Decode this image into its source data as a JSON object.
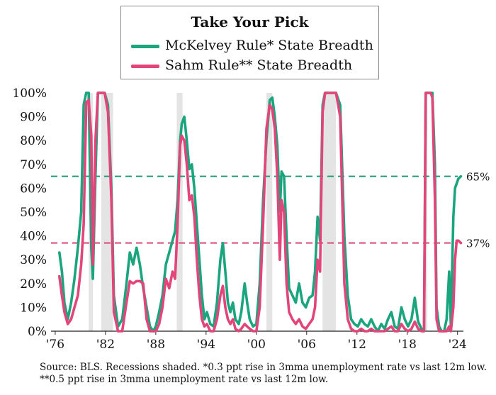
{
  "chart_data": {
    "type": "line",
    "title": "Take Your Pick",
    "xlabel": "",
    "ylabel": "",
    "ylim": [
      0,
      100
    ],
    "xlim": [
      1975.5,
      2024.7
    ],
    "y_tick_labels": [
      "0%",
      "10%",
      "20%",
      "30%",
      "40%",
      "50%",
      "60%",
      "70%",
      "80%",
      "90%",
      "100%"
    ],
    "x_tick_labels": [
      {
        "year": 1976,
        "label": "'76"
      },
      {
        "year": 1982,
        "label": "'82"
      },
      {
        "year": 1988,
        "label": "'88"
      },
      {
        "year": 1994,
        "label": "'94"
      },
      {
        "year": 2000,
        "label": "'00"
      },
      {
        "year": 2006,
        "label": "'06"
      },
      {
        "year": 2012,
        "label": "'12"
      },
      {
        "year": 2018,
        "label": "'18"
      },
      {
        "year": 2024,
        "label": "'24"
      }
    ],
    "recessions": [
      [
        1980.0,
        1980.5
      ],
      [
        1981.5,
        1982.9
      ],
      [
        1990.5,
        1991.2
      ],
      [
        2001.2,
        2001.9
      ],
      [
        2007.9,
        2009.5
      ],
      [
        2020.1,
        2020.4
      ]
    ],
    "reference_lines": [
      {
        "value": 65,
        "label": "65%",
        "color": "#1a9a7a"
      },
      {
        "value": 37,
        "label": "37%",
        "color": "#d94a7a"
      }
    ],
    "series": [
      {
        "name": "McKelvey Rule* State Breadth",
        "color": "#1aa57e",
        "points": [
          [
            1976.5,
            33
          ],
          [
            1976.8,
            25
          ],
          [
            1977.1,
            12
          ],
          [
            1977.5,
            5
          ],
          [
            1977.9,
            12
          ],
          [
            1978.3,
            22
          ],
          [
            1978.7,
            35
          ],
          [
            1979.1,
            50
          ],
          [
            1979.4,
            95
          ],
          [
            1979.7,
            100
          ],
          [
            1980.0,
            100
          ],
          [
            1980.3,
            35
          ],
          [
            1980.5,
            22
          ],
          [
            1980.8,
            65
          ],
          [
            1981.1,
            100
          ],
          [
            1981.5,
            100
          ],
          [
            1981.9,
            100
          ],
          [
            1982.3,
            95
          ],
          [
            1982.7,
            60
          ],
          [
            1983.0,
            15
          ],
          [
            1983.5,
            2
          ],
          [
            1984.0,
            5
          ],
          [
            1984.5,
            20
          ],
          [
            1984.9,
            33
          ],
          [
            1985.3,
            28
          ],
          [
            1985.7,
            35
          ],
          [
            1986.1,
            28
          ],
          [
            1986.5,
            18
          ],
          [
            1986.9,
            10
          ],
          [
            1987.3,
            2
          ],
          [
            1987.7,
            0
          ],
          [
            1988.0,
            2
          ],
          [
            1988.4,
            8
          ],
          [
            1988.8,
            15
          ],
          [
            1989.2,
            28
          ],
          [
            1989.6,
            33
          ],
          [
            1990.0,
            38
          ],
          [
            1990.3,
            42
          ],
          [
            1990.6,
            55
          ],
          [
            1990.9,
            80
          ],
          [
            1991.1,
            87
          ],
          [
            1991.4,
            90
          ],
          [
            1991.7,
            80
          ],
          [
            1992.0,
            68
          ],
          [
            1992.3,
            70
          ],
          [
            1992.6,
            60
          ],
          [
            1992.9,
            45
          ],
          [
            1993.2,
            30
          ],
          [
            1993.5,
            15
          ],
          [
            1993.8,
            5
          ],
          [
            1994.1,
            8
          ],
          [
            1994.5,
            3
          ],
          [
            1994.9,
            2
          ],
          [
            1995.3,
            12
          ],
          [
            1995.7,
            30
          ],
          [
            1996.0,
            37
          ],
          [
            1996.3,
            25
          ],
          [
            1996.6,
            12
          ],
          [
            1996.9,
            8
          ],
          [
            1997.2,
            12
          ],
          [
            1997.5,
            5
          ],
          [
            1997.9,
            3
          ],
          [
            1998.2,
            8
          ],
          [
            1998.6,
            20
          ],
          [
            1998.9,
            12
          ],
          [
            1999.2,
            5
          ],
          [
            1999.6,
            2
          ],
          [
            2000.0,
            3
          ],
          [
            2000.4,
            20
          ],
          [
            2000.8,
            55
          ],
          [
            2001.2,
            80
          ],
          [
            2001.6,
            97
          ],
          [
            2001.9,
            98
          ],
          [
            2002.2,
            90
          ],
          [
            2002.5,
            78
          ],
          [
            2002.8,
            50
          ],
          [
            2003.0,
            67
          ],
          [
            2003.3,
            65
          ],
          [
            2003.6,
            40
          ],
          [
            2003.9,
            18
          ],
          [
            2004.3,
            15
          ],
          [
            2004.7,
            12
          ],
          [
            2005.1,
            20
          ],
          [
            2005.5,
            12
          ],
          [
            2005.9,
            10
          ],
          [
            2006.3,
            14
          ],
          [
            2006.7,
            15
          ],
          [
            2007.0,
            25
          ],
          [
            2007.3,
            48
          ],
          [
            2007.6,
            38
          ],
          [
            2007.9,
            95
          ],
          [
            2008.2,
            100
          ],
          [
            2008.6,
            100
          ],
          [
            2009.0,
            100
          ],
          [
            2009.5,
            100
          ],
          [
            2010.0,
            95
          ],
          [
            2010.5,
            40
          ],
          [
            2010.9,
            15
          ],
          [
            2011.3,
            5
          ],
          [
            2011.7,
            3
          ],
          [
            2012.1,
            2
          ],
          [
            2012.5,
            5
          ],
          [
            2012.9,
            3
          ],
          [
            2013.3,
            2
          ],
          [
            2013.7,
            5
          ],
          [
            2014.1,
            2
          ],
          [
            2014.5,
            0
          ],
          [
            2014.9,
            3
          ],
          [
            2015.3,
            1
          ],
          [
            2015.7,
            5
          ],
          [
            2016.1,
            8
          ],
          [
            2016.5,
            2
          ],
          [
            2016.9,
            1
          ],
          [
            2017.3,
            10
          ],
          [
            2017.7,
            5
          ],
          [
            2018.1,
            2
          ],
          [
            2018.5,
            5
          ],
          [
            2018.9,
            14
          ],
          [
            2019.3,
            4
          ],
          [
            2019.7,
            1
          ],
          [
            2020.0,
            0
          ],
          [
            2020.2,
            100
          ],
          [
            2020.5,
            100
          ],
          [
            2020.8,
            100
          ],
          [
            2021.0,
            100
          ],
          [
            2021.3,
            70
          ],
          [
            2021.5,
            10
          ],
          [
            2021.8,
            2
          ],
          [
            2022.1,
            0
          ],
          [
            2022.4,
            0
          ],
          [
            2022.7,
            5
          ],
          [
            2023.0,
            25
          ],
          [
            2023.2,
            2
          ],
          [
            2023.5,
            48
          ],
          [
            2023.7,
            60
          ],
          [
            2023.9,
            62
          ],
          [
            2024.1,
            64
          ],
          [
            2024.4,
            65
          ]
        ]
      },
      {
        "name": "Sahm Rule** State Breadth",
        "color": "#e2457a",
        "points": [
          [
            1976.5,
            23
          ],
          [
            1976.8,
            15
          ],
          [
            1977.1,
            8
          ],
          [
            1977.5,
            3
          ],
          [
            1977.9,
            5
          ],
          [
            1978.3,
            10
          ],
          [
            1978.7,
            15
          ],
          [
            1979.1,
            28
          ],
          [
            1979.4,
            45
          ],
          [
            1979.7,
            96
          ],
          [
            1980.0,
            97
          ],
          [
            1980.3,
            82
          ],
          [
            1980.5,
            28
          ],
          [
            1980.8,
            80
          ],
          [
            1981.1,
            100
          ],
          [
            1981.5,
            100
          ],
          [
            1981.9,
            100
          ],
          [
            1982.3,
            92
          ],
          [
            1982.7,
            55
          ],
          [
            1983.0,
            8
          ],
          [
            1983.5,
            0
          ],
          [
            1984.0,
            0
          ],
          [
            1984.5,
            12
          ],
          [
            1984.9,
            21
          ],
          [
            1985.3,
            20
          ],
          [
            1985.7,
            21
          ],
          [
            1986.1,
            21
          ],
          [
            1986.5,
            20
          ],
          [
            1986.9,
            5
          ],
          [
            1987.3,
            0
          ],
          [
            1987.7,
            0
          ],
          [
            1988.0,
            0
          ],
          [
            1988.4,
            3
          ],
          [
            1988.8,
            10
          ],
          [
            1989.2,
            22
          ],
          [
            1989.6,
            18
          ],
          [
            1990.0,
            25
          ],
          [
            1990.3,
            22
          ],
          [
            1990.6,
            45
          ],
          [
            1990.9,
            78
          ],
          [
            1991.1,
            82
          ],
          [
            1991.4,
            80
          ],
          [
            1991.7,
            70
          ],
          [
            1992.0,
            55
          ],
          [
            1992.3,
            57
          ],
          [
            1992.6,
            48
          ],
          [
            1992.9,
            30
          ],
          [
            1993.2,
            15
          ],
          [
            1993.5,
            5
          ],
          [
            1993.8,
            2
          ],
          [
            1994.1,
            3
          ],
          [
            1994.5,
            0
          ],
          [
            1994.9,
            0
          ],
          [
            1995.3,
            5
          ],
          [
            1995.7,
            15
          ],
          [
            1996.0,
            19
          ],
          [
            1996.3,
            10
          ],
          [
            1996.6,
            5
          ],
          [
            1996.9,
            3
          ],
          [
            1997.2,
            5
          ],
          [
            1997.5,
            1
          ],
          [
            1997.9,
            0
          ],
          [
            1998.2,
            1
          ],
          [
            1998.6,
            3
          ],
          [
            1998.9,
            2
          ],
          [
            1999.2,
            1
          ],
          [
            1999.6,
            0
          ],
          [
            2000.0,
            0
          ],
          [
            2000.4,
            10
          ],
          [
            2000.8,
            45
          ],
          [
            2001.2,
            85
          ],
          [
            2001.6,
            95
          ],
          [
            2001.9,
            93
          ],
          [
            2002.2,
            85
          ],
          [
            2002.5,
            65
          ],
          [
            2002.8,
            30
          ],
          [
            2003.0,
            55
          ],
          [
            2003.3,
            50
          ],
          [
            2003.6,
            20
          ],
          [
            2003.9,
            8
          ],
          [
            2004.3,
            5
          ],
          [
            2004.7,
            3
          ],
          [
            2005.1,
            5
          ],
          [
            2005.5,
            2
          ],
          [
            2005.9,
            1
          ],
          [
            2006.3,
            3
          ],
          [
            2006.7,
            5
          ],
          [
            2007.0,
            10
          ],
          [
            2007.3,
            30
          ],
          [
            2007.6,
            25
          ],
          [
            2007.9,
            92
          ],
          [
            2008.2,
            100
          ],
          [
            2008.6,
            100
          ],
          [
            2009.0,
            100
          ],
          [
            2009.5,
            100
          ],
          [
            2010.0,
            90
          ],
          [
            2010.5,
            20
          ],
          [
            2010.9,
            5
          ],
          [
            2011.3,
            1
          ],
          [
            2011.7,
            0
          ],
          [
            2012.1,
            0
          ],
          [
            2012.5,
            1
          ],
          [
            2012.9,
            0
          ],
          [
            2013.3,
            0
          ],
          [
            2013.7,
            1
          ],
          [
            2014.1,
            0
          ],
          [
            2014.5,
            0
          ],
          [
            2014.9,
            0
          ],
          [
            2015.3,
            0
          ],
          [
            2015.7,
            1
          ],
          [
            2016.1,
            2
          ],
          [
            2016.5,
            0
          ],
          [
            2016.9,
            0
          ],
          [
            2017.3,
            3
          ],
          [
            2017.7,
            1
          ],
          [
            2018.1,
            0
          ],
          [
            2018.5,
            1
          ],
          [
            2018.9,
            4
          ],
          [
            2019.3,
            1
          ],
          [
            2019.7,
            0
          ],
          [
            2020.0,
            0
          ],
          [
            2020.2,
            100
          ],
          [
            2020.5,
            100
          ],
          [
            2020.8,
            100
          ],
          [
            2021.0,
            98
          ],
          [
            2021.3,
            55
          ],
          [
            2021.5,
            5
          ],
          [
            2021.8,
            0
          ],
          [
            2022.1,
            0
          ],
          [
            2022.4,
            0
          ],
          [
            2022.7,
            0
          ],
          [
            2023.0,
            2
          ],
          [
            2023.2,
            0
          ],
          [
            2023.5,
            10
          ],
          [
            2023.7,
            30
          ],
          [
            2023.9,
            38
          ],
          [
            2024.1,
            38
          ],
          [
            2024.4,
            37
          ]
        ]
      }
    ]
  },
  "source_note": "Source: BLS. Recessions shaded. *0.3 ppt rise in 3mma unemployment rate vs last 12m low. **0.5 ppt rise in 3mma unemployment rate vs last 12m low."
}
